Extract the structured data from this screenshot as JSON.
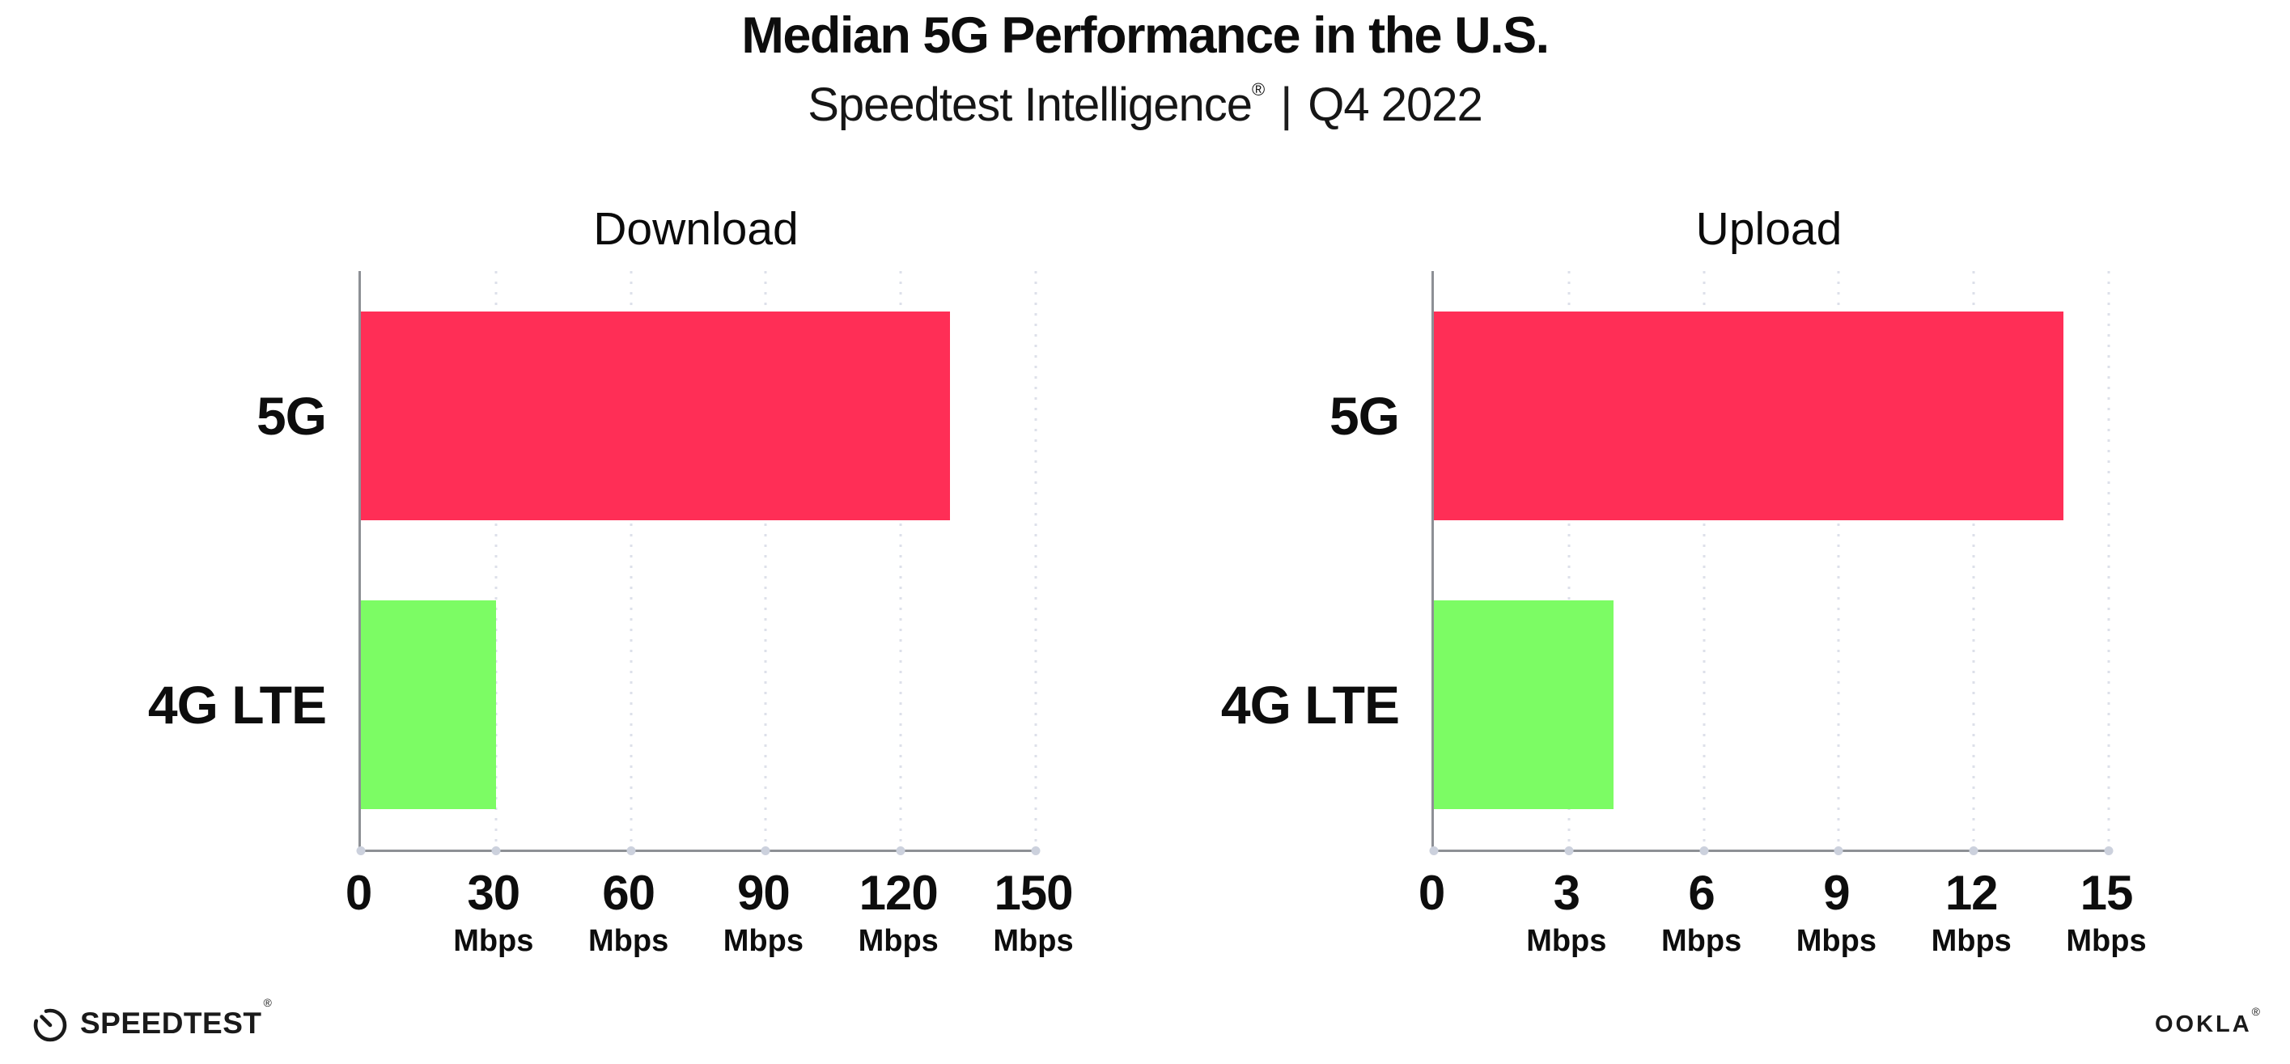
{
  "header": {
    "title": "Median 5G Performance in the U.S.",
    "subtitle_brand": "Speedtest Intelligence",
    "subtitle_reg_mark": "®",
    "subtitle_separator": "|",
    "subtitle_period": "Q4 2022"
  },
  "chart_data": [
    {
      "type": "bar",
      "orientation": "horizontal",
      "title": "Download",
      "categories": [
        "5G",
        "4G LTE"
      ],
      "values": [
        131,
        30
      ],
      "unit": "Mbps",
      "xlim": [
        0,
        150
      ],
      "xticks": [
        0,
        30,
        60,
        90,
        120,
        150
      ],
      "bar_colors": [
        "#FF2E56",
        "#7CFC64"
      ],
      "grid": "dotted-vertical",
      "legend_position": "none"
    },
    {
      "type": "bar",
      "orientation": "horizontal",
      "title": "Upload",
      "categories": [
        "5G",
        "4G LTE"
      ],
      "values": [
        14,
        4
      ],
      "unit": "Mbps",
      "xlim": [
        0,
        15
      ],
      "xticks": [
        0,
        3,
        6,
        9,
        12,
        15
      ],
      "bar_colors": [
        "#FF2E56",
        "#7CFC64"
      ],
      "grid": "dotted-vertical",
      "legend_position": "none"
    }
  ],
  "colors": {
    "bar_5g": "#FF2E56",
    "bar_4g_lte": "#7CFC64",
    "axis": "#8d9095",
    "gridline": "#dde0ea",
    "tick_dot": "#ccd1dd",
    "text": "#0d0d0d"
  },
  "icons": {
    "speedtest_logo": "speedometer-gauge-icon"
  },
  "footer": {
    "speedtest_wordmark": "SPEEDTEST",
    "speedtest_mark": "®",
    "ookla_wordmark": "OOKLA",
    "ookla_mark": "®"
  }
}
